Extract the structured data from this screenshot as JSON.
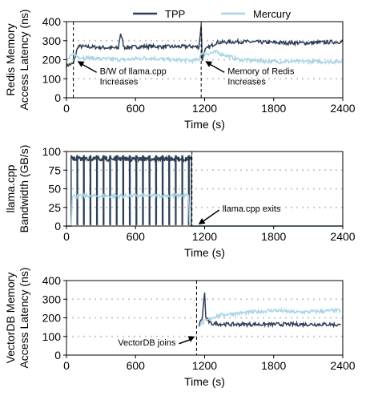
{
  "legend": [
    {
      "name": "TPP",
      "color": "#2e4057"
    },
    {
      "name": "Mercury",
      "color": "#a8d5e5"
    }
  ],
  "chart_data": [
    {
      "type": "line",
      "id": "redis",
      "ylabel_lines": [
        "Redis Memory",
        "Access Latency (ns)"
      ],
      "xlabel": "Time (s)",
      "xlim": [
        0,
        2400
      ],
      "ylim": [
        0,
        400
      ],
      "xticks": [
        0,
        600,
        1200,
        1800,
        2400
      ],
      "yticks": [
        0,
        100,
        200,
        300,
        400
      ],
      "grid_y": [
        100,
        200,
        300
      ],
      "events": [
        60,
        1170
      ],
      "annotations": [
        {
          "lines": [
            "B/W of llama.cpp",
            "Increases"
          ],
          "x": 60,
          "y": 100
        },
        {
          "lines": [
            "Memory of Redis",
            "Increases"
          ],
          "x": 1170,
          "y": 100
        }
      ],
      "series": [
        {
          "name": "TPP",
          "x": [
            0,
            60,
            100,
            300,
            450,
            470,
            500,
            700,
            900,
            1100,
            1150,
            1170,
            1180,
            1200,
            1300,
            1500,
            1800,
            2100,
            2400
          ],
          "y": [
            170,
            180,
            270,
            265,
            260,
            340,
            265,
            270,
            268,
            270,
            265,
            380,
            200,
            250,
            290,
            295,
            290,
            288,
            295
          ]
        },
        {
          "name": "Mercury",
          "x": [
            0,
            60,
            100,
            300,
            500,
            700,
            900,
            1100,
            1150,
            1170,
            1200,
            1300,
            1500,
            1800,
            2100,
            2400
          ],
          "y": [
            195,
            230,
            215,
            205,
            200,
            210,
            200,
            195,
            200,
            240,
            230,
            240,
            200,
            190,
            190,
            190
          ]
        }
      ]
    },
    {
      "type": "line",
      "id": "llama",
      "ylabel_lines": [
        "llama.cpp",
        "Bandwidth (GB/s)"
      ],
      "xlabel": "Time (s)",
      "xlim": [
        0,
        2400
      ],
      "ylim": [
        0,
        100
      ],
      "xticks": [
        0,
        600,
        1200,
        1800,
        2400
      ],
      "yticks": [
        0,
        25,
        50,
        75,
        100
      ],
      "grid_y": [
        25,
        50,
        75
      ],
      "events": [
        1090
      ],
      "annotations": [
        {
          "lines": [
            "llama.cpp exits"
          ],
          "x": 1090,
          "y": 0
        }
      ],
      "series": [
        {
          "name": "TPP",
          "periodic": {
            "start": 40,
            "end": 1085,
            "period": 57,
            "high": 95,
            "low": 0,
            "drop_width": 6
          }
        },
        {
          "name": "Mercury",
          "x": [
            0,
            40,
            50,
            1060,
            1070,
            2400
          ],
          "y": [
            0,
            0,
            40,
            41,
            0,
            0
          ]
        }
      ]
    },
    {
      "type": "line",
      "id": "vectordb",
      "ylabel_lines": [
        "VectorDB Memory",
        "Access Latency (ns)"
      ],
      "xlabel": "Time (s)",
      "xlim": [
        0,
        2400
      ],
      "ylim": [
        0,
        400
      ],
      "xticks": [
        0,
        600,
        1200,
        1800,
        2400
      ],
      "yticks": [
        0,
        100,
        200,
        300,
        400
      ],
      "grid_y": [
        100,
        200,
        300
      ],
      "events": [
        1130
      ],
      "annotations": [
        {
          "lines": [
            "VectorDB joins"
          ],
          "x": 1130,
          "y": 100
        }
      ],
      "series": [
        {
          "name": "TPP",
          "x": [
            1150,
            1180,
            1200,
            1210,
            1250,
            1400,
            1700,
            2000,
            2300,
            2380
          ],
          "y": [
            160,
            200,
            340,
            200,
            170,
            165,
            165,
            165,
            165,
            160
          ]
        },
        {
          "name": "Mercury",
          "x": [
            1150,
            1200,
            1300,
            1400,
            1600,
            1800,
            2000,
            2200,
            2380
          ],
          "y": [
            160,
            180,
            210,
            220,
            230,
            240,
            230,
            235,
            240
          ]
        }
      ]
    }
  ]
}
